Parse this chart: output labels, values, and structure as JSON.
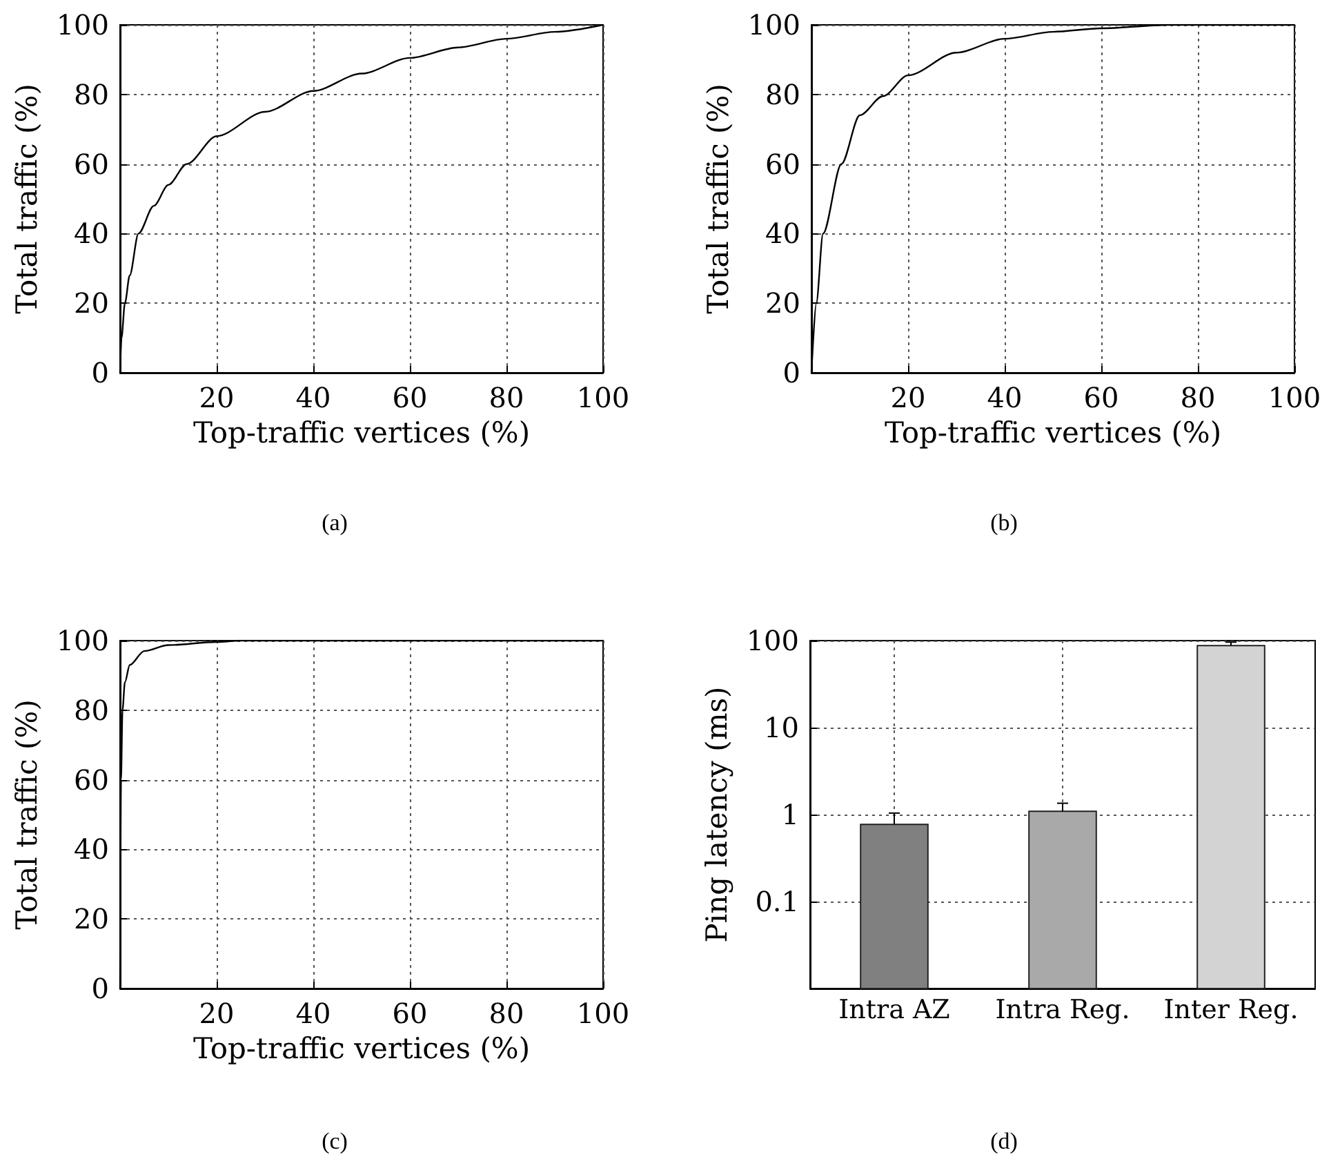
{
  "chart_data": [
    {
      "type": "line",
      "xlabel": "Top-traffic vertices (%)",
      "ylabel": "Total traffic (%)",
      "annotations": [
        "(a)"
      ],
      "x": [
        0,
        0.3,
        1,
        2,
        3.8,
        7,
        10,
        13.8,
        20,
        30,
        40,
        50,
        60,
        70,
        80,
        90,
        100
      ],
      "series": [
        {
          "color": "#000000",
          "values": [
            0,
            10,
            20,
            28,
            40,
            48,
            54,
            60,
            68,
            75,
            81,
            86,
            90.5,
            93.5,
            96,
            98,
            100
          ]
        }
      ],
      "xlim": [
        0,
        100
      ],
      "xticks": [
        20,
        40,
        60,
        80,
        100
      ],
      "ylim": [
        0,
        100
      ],
      "yticks": [
        0,
        20,
        40,
        60,
        80,
        100
      ],
      "grid": true
    },
    {
      "type": "line",
      "xlabel": "Top-traffic vertices (%)",
      "ylabel": "Total traffic (%)",
      "annotations": [
        "(b)"
      ],
      "x": [
        0,
        1,
        2.4,
        6.2,
        10,
        14.8,
        20,
        30,
        40,
        50,
        60,
        74,
        100
      ],
      "series": [
        {
          "color": "#000000",
          "values": [
            0,
            20,
            40,
            60,
            74,
            79.5,
            85.5,
            92,
            96,
            98,
            99,
            100,
            100
          ]
        }
      ],
      "xlim": [
        0,
        100
      ],
      "xticks": [
        20,
        40,
        60,
        80,
        100
      ],
      "ylim": [
        0,
        100
      ],
      "yticks": [
        0,
        20,
        40,
        60,
        80,
        100
      ],
      "grid": true
    },
    {
      "type": "line",
      "xlabel": "Top-traffic vertices (%)",
      "ylabel": "Total traffic (%)",
      "annotations": [
        "(c)"
      ],
      "x": [
        0,
        0.2,
        0.5,
        1,
        2,
        5,
        10,
        20,
        25,
        100
      ],
      "series": [
        {
          "color": "#000000",
          "values": [
            0,
            60,
            80,
            88,
            93,
            97,
            98.7,
            99.6,
            100,
            100
          ]
        }
      ],
      "xlim": [
        0,
        100
      ],
      "xticks": [
        20,
        40,
        60,
        80,
        100
      ],
      "ylim": [
        0,
        100
      ],
      "yticks": [
        0,
        20,
        40,
        60,
        80,
        100
      ],
      "grid": true
    },
    {
      "type": "bar",
      "ylabel": "Ping latency (ms)",
      "annotations": [
        "(d)"
      ],
      "categories": [
        "Intra AZ",
        "Intra Reg.",
        "Inter Reg."
      ],
      "values": [
        0.77,
        1.09,
        87.5
      ],
      "colors": [
        "#808080",
        "#a9a9a9",
        "#d3d3d3"
      ],
      "errors": [
        [
          0.77,
          1.04
        ],
        [
          1.09,
          1.35
        ],
        [
          87.5,
          96
        ]
      ],
      "log": true,
      "ylim": [
        0.01,
        100
      ],
      "yticks": [
        0.1,
        1,
        10,
        100
      ],
      "grid": true
    }
  ]
}
